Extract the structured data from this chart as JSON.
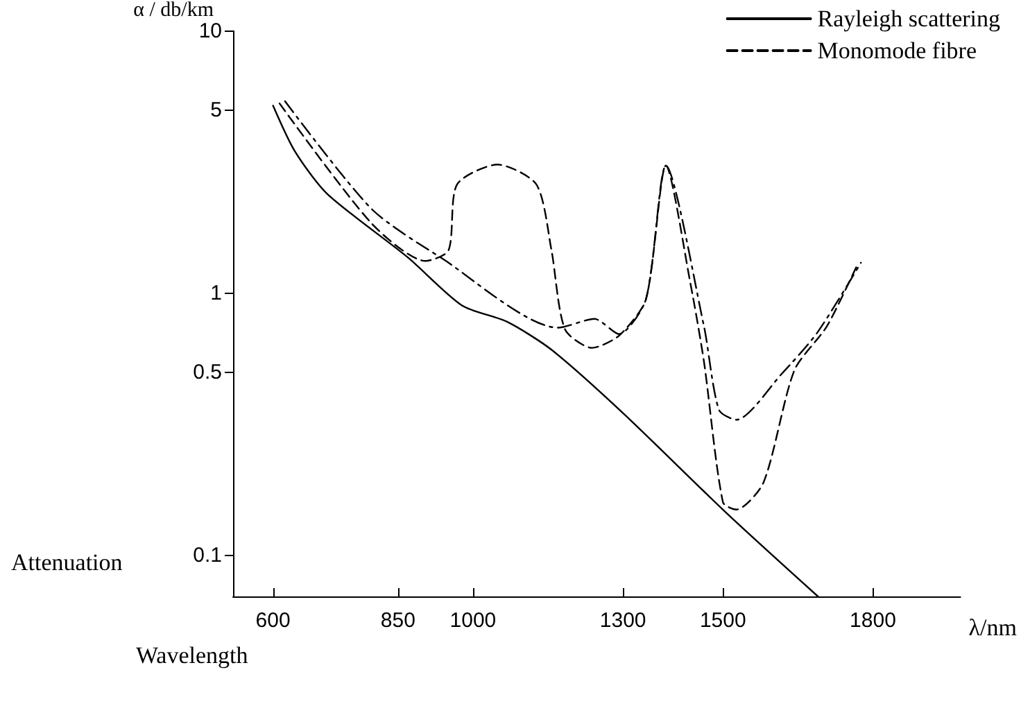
{
  "chart_data": {
    "type": "line",
    "ylabel": "α / db/km",
    "xlabel": "λ/nm",
    "annotations": [
      "Attenuation",
      "Wavelength"
    ],
    "xlim": [
      520,
      1975
    ],
    "xticks": [
      600,
      850,
      1000,
      1300,
      1500,
      1800
    ],
    "ylim": [
      0.07,
      10
    ],
    "yticks": [
      0.1,
      0.5,
      1,
      5,
      10
    ],
    "log": "y",
    "grid": false,
    "legend": "top right",
    "marker": "none",
    "series": [
      {
        "name": "Rayleigh scattering",
        "color": "#000000",
        "line_style": "solid",
        "x": [
          600,
          643,
          708,
          870,
          978,
          1068,
          1157,
          1300,
          1508,
          1690
        ],
        "values": [
          5.2,
          3.5,
          2.4,
          1.37,
          0.9,
          0.78,
          0.61,
          0.35,
          0.145,
          0.07
        ]
      },
      {
        "name": "Monomode fibre",
        "color": "#000000",
        "line_style": "dashed",
        "x": [
          613,
          797,
          905,
          951,
          968,
          1049,
          1127,
          1157,
          1184,
          1238,
          1292,
          1346,
          1386,
          1435,
          1462,
          1500,
          1527,
          1581,
          1643,
          1708,
          1770
        ],
        "values": [
          5.3,
          1.85,
          1.33,
          1.46,
          2.6,
          3.1,
          2.6,
          1.46,
          0.73,
          0.62,
          0.69,
          0.95,
          3.07,
          1.09,
          0.55,
          0.16,
          0.15,
          0.19,
          0.51,
          0.75,
          1.3
        ]
      },
      {
        "color": "#000000",
        "line_style": "dashdot",
        "x": [
          624,
          797,
          938,
          1170,
          1243,
          1292,
          1346,
          1386,
          1462,
          1492,
          1527,
          1616,
          1689,
          1776
        ],
        "values": [
          5.4,
          2.1,
          1.36,
          0.74,
          0.8,
          0.7,
          0.95,
          3.07,
          0.75,
          0.36,
          0.33,
          0.49,
          0.71,
          1.31
        ]
      }
    ]
  }
}
